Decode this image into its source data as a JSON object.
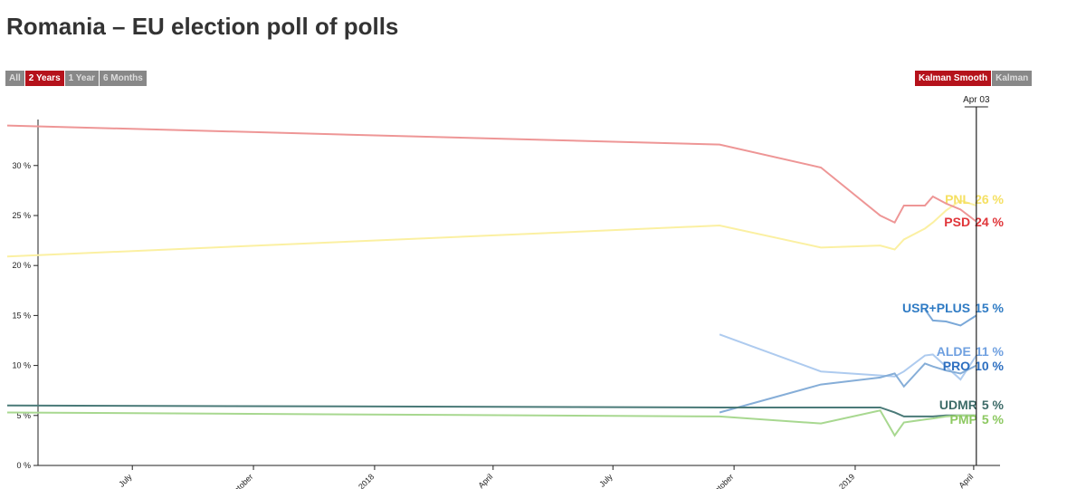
{
  "chart_data": {
    "type": "line",
    "title": "Romania – EU election poll of polls",
    "x": [
      "2017-03-28",
      "2018-09-20",
      "2018-12-06",
      "2019-01-20",
      "2019-01-31",
      "2019-02-07",
      "2019-02-23",
      "2019-03-01",
      "2019-03-11",
      "2019-03-22",
      "2019-04-03"
    ],
    "xlim": [
      "2017-03-28",
      "2019-04-21"
    ],
    "xticks": [
      {
        "value": "2017-07-01",
        "label": "July"
      },
      {
        "value": "2017-10-01",
        "label": "October"
      },
      {
        "value": "2018-01-01",
        "label": "2018"
      },
      {
        "value": "2018-04-01",
        "label": "April"
      },
      {
        "value": "2018-07-01",
        "label": "July"
      },
      {
        "value": "2018-10-01",
        "label": "October"
      },
      {
        "value": "2019-01-01",
        "label": "2019"
      },
      {
        "value": "2019-04-01",
        "label": "April"
      }
    ],
    "ylim": [
      0,
      34.6
    ],
    "yticks": [
      {
        "value": 0,
        "label": "0 %"
      },
      {
        "value": 5,
        "label": "5 %"
      },
      {
        "value": 10,
        "label": "10 %"
      },
      {
        "value": 15,
        "label": "15 %"
      },
      {
        "value": 20,
        "label": "20 %"
      },
      {
        "value": 25,
        "label": "25 %"
      },
      {
        "value": 30,
        "label": "30 %"
      }
    ],
    "cursor": {
      "x": "2019-04-03",
      "label": "Apr 03"
    },
    "series": [
      {
        "name": "PNL",
        "label": "26 %",
        "color": "#fbf0a2",
        "label_color": "#f5e062",
        "values": [
          20.9,
          24.0,
          21.8,
          22.0,
          21.6,
          22.6,
          23.7,
          24.3,
          25.5,
          26.5,
          26.0
        ]
      },
      {
        "name": "PSD",
        "label": "24 %",
        "color": "#ee9696",
        "label_color": "#e0363a",
        "values": [
          34.0,
          32.1,
          29.8,
          25.0,
          24.3,
          26.0,
          26.0,
          26.9,
          26.2,
          25.6,
          24.4
        ]
      },
      {
        "name": "USR+PLUS",
        "label": "15 %",
        "color": "#7aa8d8",
        "label_color": "#2f7bc4",
        "values": [
          null,
          null,
          null,
          null,
          null,
          null,
          15.6,
          14.5,
          14.4,
          14.0,
          15.0
        ]
      },
      {
        "name": "ALDE",
        "label": "11 %",
        "color": "#aecbef",
        "label_color": "#6fa0e0",
        "values": [
          null,
          13.1,
          9.4,
          9.0,
          8.9,
          9.4,
          11.0,
          11.1,
          9.9,
          8.6,
          11.0
        ]
      },
      {
        "name": "PRO",
        "label": "10 %",
        "color": "#86aed8",
        "label_color": "#2d6fc0",
        "values": [
          null,
          5.3,
          8.1,
          8.8,
          9.2,
          7.9,
          10.2,
          9.9,
          9.5,
          9.2,
          10.0
        ]
      },
      {
        "name": "UDMR",
        "label": "5 %",
        "color": "#4a7a78",
        "label_color": "#3d6b68",
        "values": [
          6.0,
          5.8,
          5.8,
          5.8,
          5.3,
          4.9,
          4.9,
          4.9,
          5.0,
          5.0,
          5.0
        ]
      },
      {
        "name": "PMP",
        "label": "5 %",
        "color": "#a8d890",
        "label_color": "#8cc860",
        "values": [
          5.3,
          4.9,
          4.2,
          5.5,
          3.0,
          4.3,
          4.6,
          4.7,
          4.9,
          5.0,
          5.0
        ]
      }
    ]
  },
  "controls": {
    "ranges": [
      "All",
      "2 Years",
      "1 Year",
      "6 Months"
    ],
    "active_range": 1,
    "smoothing": [
      "Kalman Smooth",
      "Kalman"
    ],
    "active_smoothing": 0
  }
}
